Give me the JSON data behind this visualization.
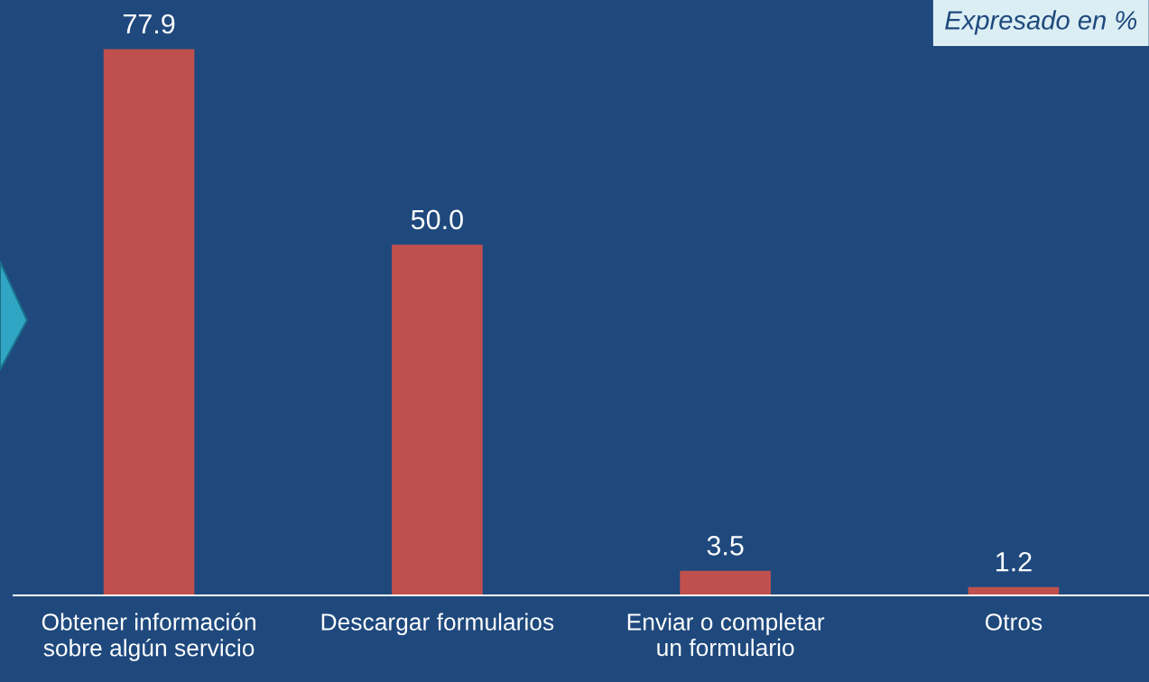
{
  "chart_data": {
    "type": "bar",
    "categories": [
      "Obtener información sobre algún servicio",
      "Descargar formularios",
      "Enviar o completar un formulario",
      "Otros"
    ],
    "values": [
      77.9,
      50.0,
      3.5,
      1.2
    ],
    "value_labels": [
      "77.9",
      "50.0",
      "3.5",
      "1.2"
    ],
    "color": "#c0504d",
    "annotations": [
      "Expresado en %"
    ],
    "grid": false,
    "legend": false
  }
}
